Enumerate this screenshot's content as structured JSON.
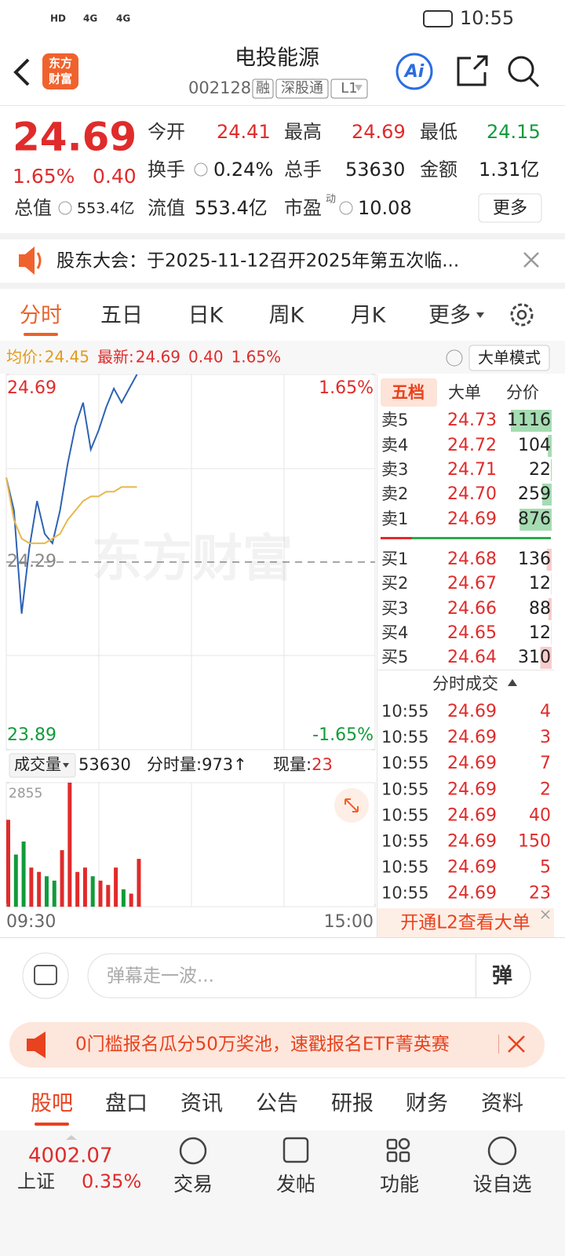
{
  "status_bar": {
    "network": [
      "HD",
      "4G",
      "4G"
    ],
    "time": "10:55"
  },
  "header": {
    "logo": [
      "东方",
      "财富"
    ],
    "title": "电投能源",
    "code": "002128",
    "tags": [
      "融",
      "深股通",
      "L1"
    ],
    "ai": "Ai"
  },
  "quote": {
    "price": "24.69",
    "change_pct": "1.65%",
    "change": "0.40",
    "fields": [
      {
        "label": "今开",
        "value": "24.41",
        "color": "#e02b2b"
      },
      {
        "label": "最高",
        "value": "24.69",
        "color": "#e02b2b"
      },
      {
        "label": "最低",
        "value": "24.15",
        "color": "#119b3a"
      },
      {
        "label": "换手",
        "value": "0.24%"
      },
      {
        "label": "总手",
        "value": "53630"
      },
      {
        "label": "金额",
        "value": "1.31亿"
      },
      {
        "label": "总值",
        "value": "553.4亿"
      },
      {
        "label": "流值",
        "value": "553.4亿"
      },
      {
        "label": "市盈",
        "sup": "动",
        "value": "10.08"
      }
    ],
    "more": "更多"
  },
  "notice": {
    "text": "股东大会：于2025-11-12召开2025年第五次临..."
  },
  "tabs": {
    "items": [
      "分时",
      "五日",
      "日K",
      "周K",
      "月K",
      "更多"
    ],
    "active": 0
  },
  "info": {
    "avg_label": "均价:",
    "avg": "24.45",
    "latest_label": "最新:",
    "latest": "24.69",
    "change": "0.40",
    "change_pct": "1.65%",
    "mode": "大单模式"
  },
  "watermark": "东方财富",
  "chart_data": [
    {
      "type": "line",
      "x": [
        "09:30",
        "09:35",
        "09:40",
        "09:45",
        "09:50",
        "09:55",
        "10:00",
        "10:05",
        "10:10",
        "10:15",
        "10:20",
        "10:25",
        "10:30",
        "10:35",
        "10:40",
        "10:45",
        "10:50",
        "10:55"
      ],
      "xlim": [
        "09:30",
        "15:00"
      ],
      "ylim": [
        23.89,
        24.69
      ],
      "yticks": [
        23.89,
        24.29,
        24.69
      ],
      "y2lim": [
        -1.65,
        1.65
      ],
      "y2ticks": [
        {
          "value": -1.65,
          "label": "-1.65%"
        },
        {
          "value": 1.65,
          "label": "1.65%"
        }
      ],
      "series": [
        {
          "color": "#2d63b3",
          "values": [
            24.47,
            24.4,
            24.18,
            24.32,
            24.42,
            24.35,
            24.33,
            24.4,
            24.5,
            24.58,
            24.63,
            24.53,
            24.57,
            24.62,
            24.66,
            24.63,
            24.66,
            24.69
          ]
        },
        {
          "color": "#e8b84a",
          "values": [
            24.47,
            24.38,
            24.34,
            24.33,
            24.33,
            24.33,
            24.34,
            24.35,
            24.38,
            24.4,
            24.42,
            24.43,
            24.43,
            24.44,
            24.44,
            24.45,
            24.45,
            24.45
          ]
        }
      ]
    },
    {
      "type": "bar",
      "x": [
        "09:30",
        "09:35",
        "09:40",
        "09:45",
        "09:50",
        "09:55",
        "10:00",
        "10:05",
        "10:10",
        "10:15",
        "10:20",
        "10:25",
        "10:30",
        "10:35",
        "10:40",
        "10:45",
        "10:50",
        "10:55"
      ],
      "xlim": [
        "09:30",
        "15:00"
      ],
      "xticks": [
        "09:30",
        "15:00"
      ],
      "ylim": [
        0,
        2855
      ],
      "yticks": [
        2855
      ],
      "values": [
        2000,
        1200,
        1500,
        900,
        800,
        700,
        600,
        1300,
        2855,
        800,
        900,
        700,
        600,
        500,
        900,
        400,
        300,
        1100
      ],
      "up_color": "#e02b2b",
      "down_color": "#119b3a"
    }
  ],
  "volume_bar": {
    "label": "成交量",
    "total": "53630",
    "minute_label": "分时量:",
    "minute": "973↑",
    "current_label": "现量:",
    "current": "23"
  },
  "order_book": {
    "tabs": [
      "五档",
      "大单",
      "分价"
    ],
    "sell": [
      {
        "label": "卖5",
        "price": "24.73",
        "volume": 1116
      },
      {
        "label": "卖4",
        "price": "24.72",
        "volume": 104
      },
      {
        "label": "卖3",
        "price": "24.71",
        "volume": 22
      },
      {
        "label": "卖2",
        "price": "24.70",
        "volume": 259
      },
      {
        "label": "卖1",
        "price": "24.69",
        "volume": 876
      }
    ],
    "buy": [
      {
        "label": "买1",
        "price": "24.68",
        "volume": 136
      },
      {
        "label": "买2",
        "price": "24.67",
        "volume": 12
      },
      {
        "label": "买3",
        "price": "24.66",
        "volume": 88
      },
      {
        "label": "买4",
        "price": "24.65",
        "volume": 12
      },
      {
        "label": "买5",
        "price": "24.64",
        "volume": 310
      }
    ]
  },
  "trades": {
    "title": "分时成交",
    "rows": [
      {
        "time": "10:55",
        "price": "24.69",
        "volume": 4
      },
      {
        "time": "10:55",
        "price": "24.69",
        "volume": 3
      },
      {
        "time": "10:55",
        "price": "24.69",
        "volume": 7
      },
      {
        "time": "10:55",
        "price": "24.69",
        "volume": 2
      },
      {
        "time": "10:55",
        "price": "24.69",
        "volume": 40
      },
      {
        "time": "10:55",
        "price": "24.69",
        "volume": 150
      },
      {
        "time": "10:55",
        "price": "24.69",
        "volume": 5
      },
      {
        "time": "10:55",
        "price": "24.69",
        "volume": 23
      }
    ]
  },
  "l2": "开通L2查看大单",
  "comment": {
    "placeholder": "弹幕走一波...",
    "button": "弹"
  },
  "banner": "0门槛报名瓜分50万奖池，速戳报名ETF菁英赛",
  "bottom_tabs": {
    "items": [
      "股吧",
      "盘口",
      "资讯",
      "公告",
      "研报",
      "财务",
      "资料"
    ],
    "active": 0
  },
  "nav": {
    "index_value": "4002.07",
    "index_name": "上证",
    "index_change": "0.35%",
    "items": [
      "交易",
      "发帖",
      "功能",
      "设自选"
    ]
  }
}
